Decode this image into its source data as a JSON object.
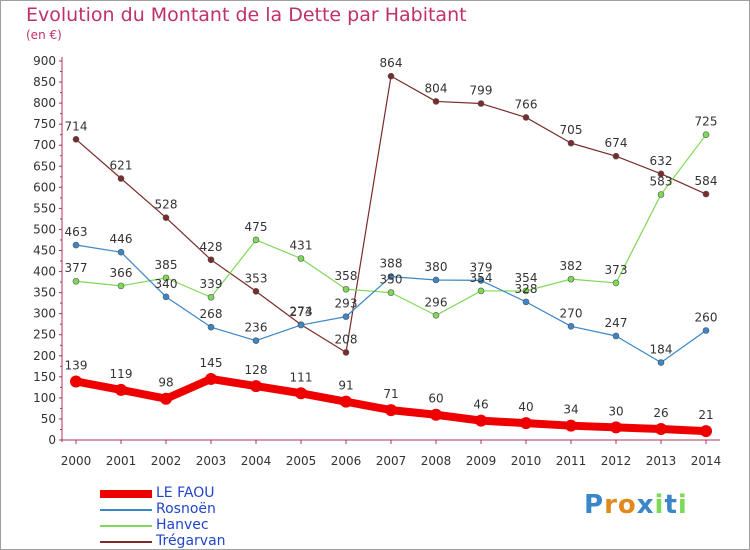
{
  "chart_data": {
    "type": "line",
    "title": "Evolution du Montant de la Dette par Habitant",
    "subtitle": "(en €)",
    "xlabel": "",
    "ylabel": "",
    "x": [
      "2000",
      "2001",
      "2002",
      "2003",
      "2004",
      "2005",
      "2006",
      "2007",
      "2008",
      "2009",
      "2010",
      "2011",
      "2012",
      "2013",
      "2014"
    ],
    "ylim": [
      0,
      900
    ],
    "yticks": [
      0,
      50,
      100,
      150,
      200,
      250,
      300,
      350,
      400,
      450,
      500,
      550,
      600,
      650,
      700,
      750,
      800,
      850,
      900
    ],
    "grid": false,
    "legend_position": "bottom-left",
    "series": [
      {
        "name": "LE FAOU",
        "color": "#ee0000",
        "values": [
          139,
          119,
          98,
          145,
          128,
          111,
          91,
          71,
          60,
          46,
          40,
          34,
          30,
          26,
          21
        ]
      },
      {
        "name": "Rosnoën",
        "color": "#3a86c8",
        "values": [
          463,
          446,
          340,
          268,
          236,
          273,
          293,
          388,
          380,
          379,
          328,
          270,
          247,
          184,
          260
        ]
      },
      {
        "name": "Hanvec",
        "color": "#7ed957",
        "values": [
          377,
          366,
          385,
          339,
          475,
          431,
          358,
          350,
          296,
          354,
          354,
          382,
          373,
          583,
          725
        ]
      },
      {
        "name": "Trégarvan",
        "color": "#7a2b2b",
        "values": [
          714,
          621,
          528,
          428,
          353,
          274,
          208,
          864,
          804,
          799,
          766,
          705,
          674,
          632,
          584
        ]
      }
    ]
  },
  "logo": {
    "letters": [
      "P",
      "r",
      "o",
      "x",
      "i",
      "t",
      "i"
    ],
    "colors": [
      "#3a86c8",
      "#e08a1e",
      "#e08a1e",
      "#3a86c8",
      "#7ed957",
      "#3a86c8",
      "#7ed957"
    ]
  }
}
